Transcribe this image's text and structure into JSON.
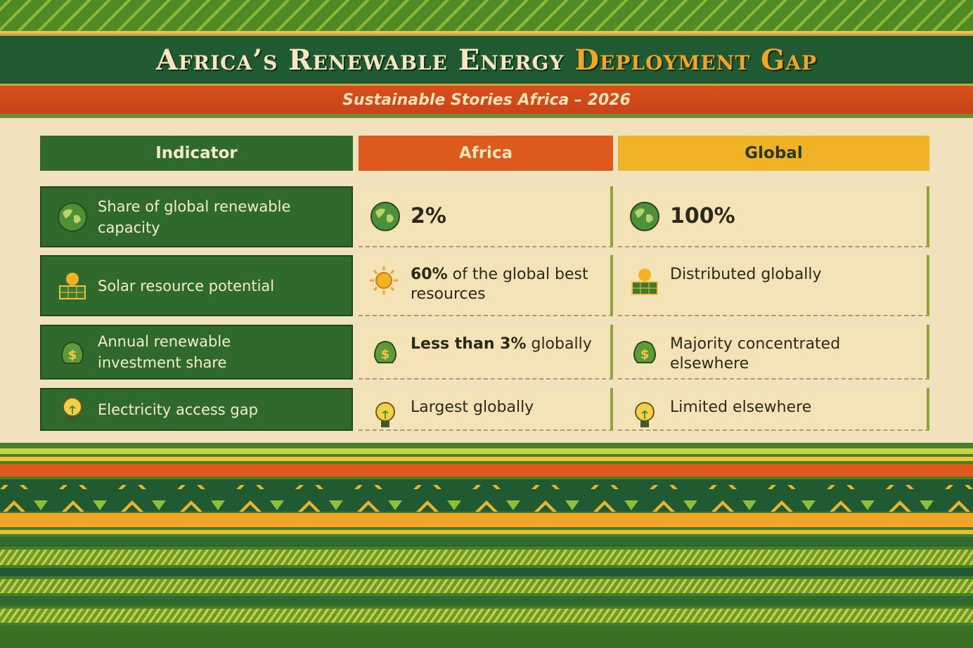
{
  "header": {
    "title": "Africa’s Renewable Energy",
    "title_highlight": "Deployment Gap",
    "subtitle": "Sustainable Stories Africa – 2026"
  },
  "table": {
    "columns": [
      "Indicator",
      "Africa",
      "Global"
    ],
    "rows": [
      {
        "indicator": "Share of global renewable capacity",
        "africa": {
          "strong": "2%"
        },
        "global": {
          "strong": "100%"
        }
      },
      {
        "indicator": "Solar resource potential",
        "africa": {
          "strong": "60%",
          "text": "of the global best resources"
        },
        "global": {
          "text": "Distributed globally"
        }
      },
      {
        "indicator": "Annual renewable investment share",
        "africa": {
          "strong": "Less than 3%",
          "text": "globally"
        },
        "global": {
          "text": "Majority concentrated elsewhere"
        }
      },
      {
        "indicator": "Electricity access gap",
        "africa": {
          "text": "Largest globally"
        },
        "global": {
          "text": "Limited elsewhere"
        }
      }
    ]
  }
}
